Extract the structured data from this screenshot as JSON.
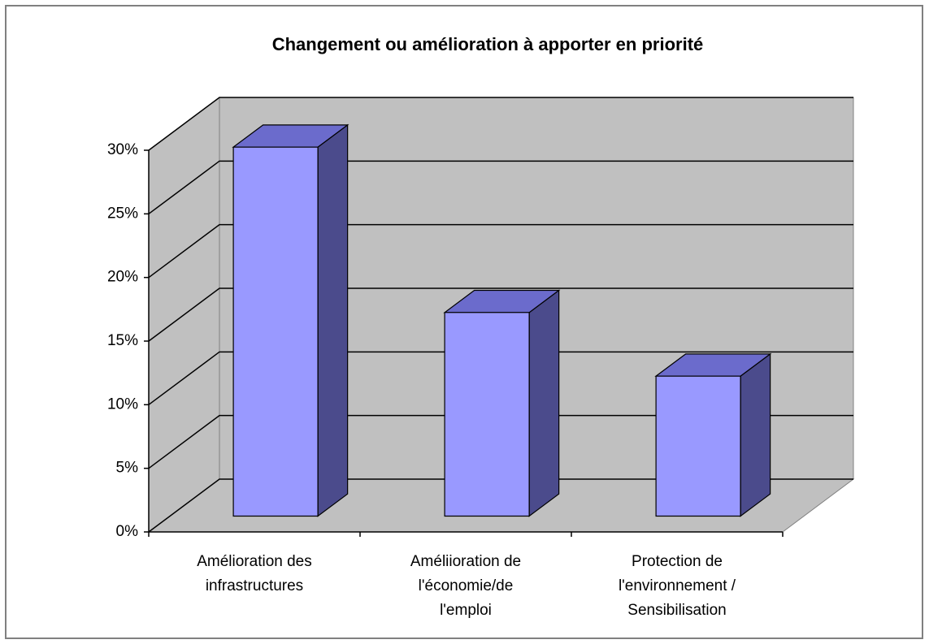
{
  "chart_data": {
    "type": "bar3d",
    "title": "Changement ou amélioration à apporter en priorité",
    "categories": [
      "Amélioration des\ninfrastructures",
      "Améliioration de\nl'économie/de\nl'emploi",
      "Protection de\nl'environnement /\nSensibilisation"
    ],
    "values": [
      29,
      16,
      11
    ],
    "color": "#9999ff",
    "ylim": [
      0,
      30
    ],
    "yticks": [
      {
        "value": 0,
        "label": "0%"
      },
      {
        "value": 5,
        "label": "5%"
      },
      {
        "value": 10,
        "label": "10%"
      },
      {
        "value": 15,
        "label": "15%"
      },
      {
        "value": 20,
        "label": "20%"
      },
      {
        "value": 25,
        "label": "25%"
      },
      {
        "value": 30,
        "label": "30%"
      }
    ],
    "grid": true
  }
}
